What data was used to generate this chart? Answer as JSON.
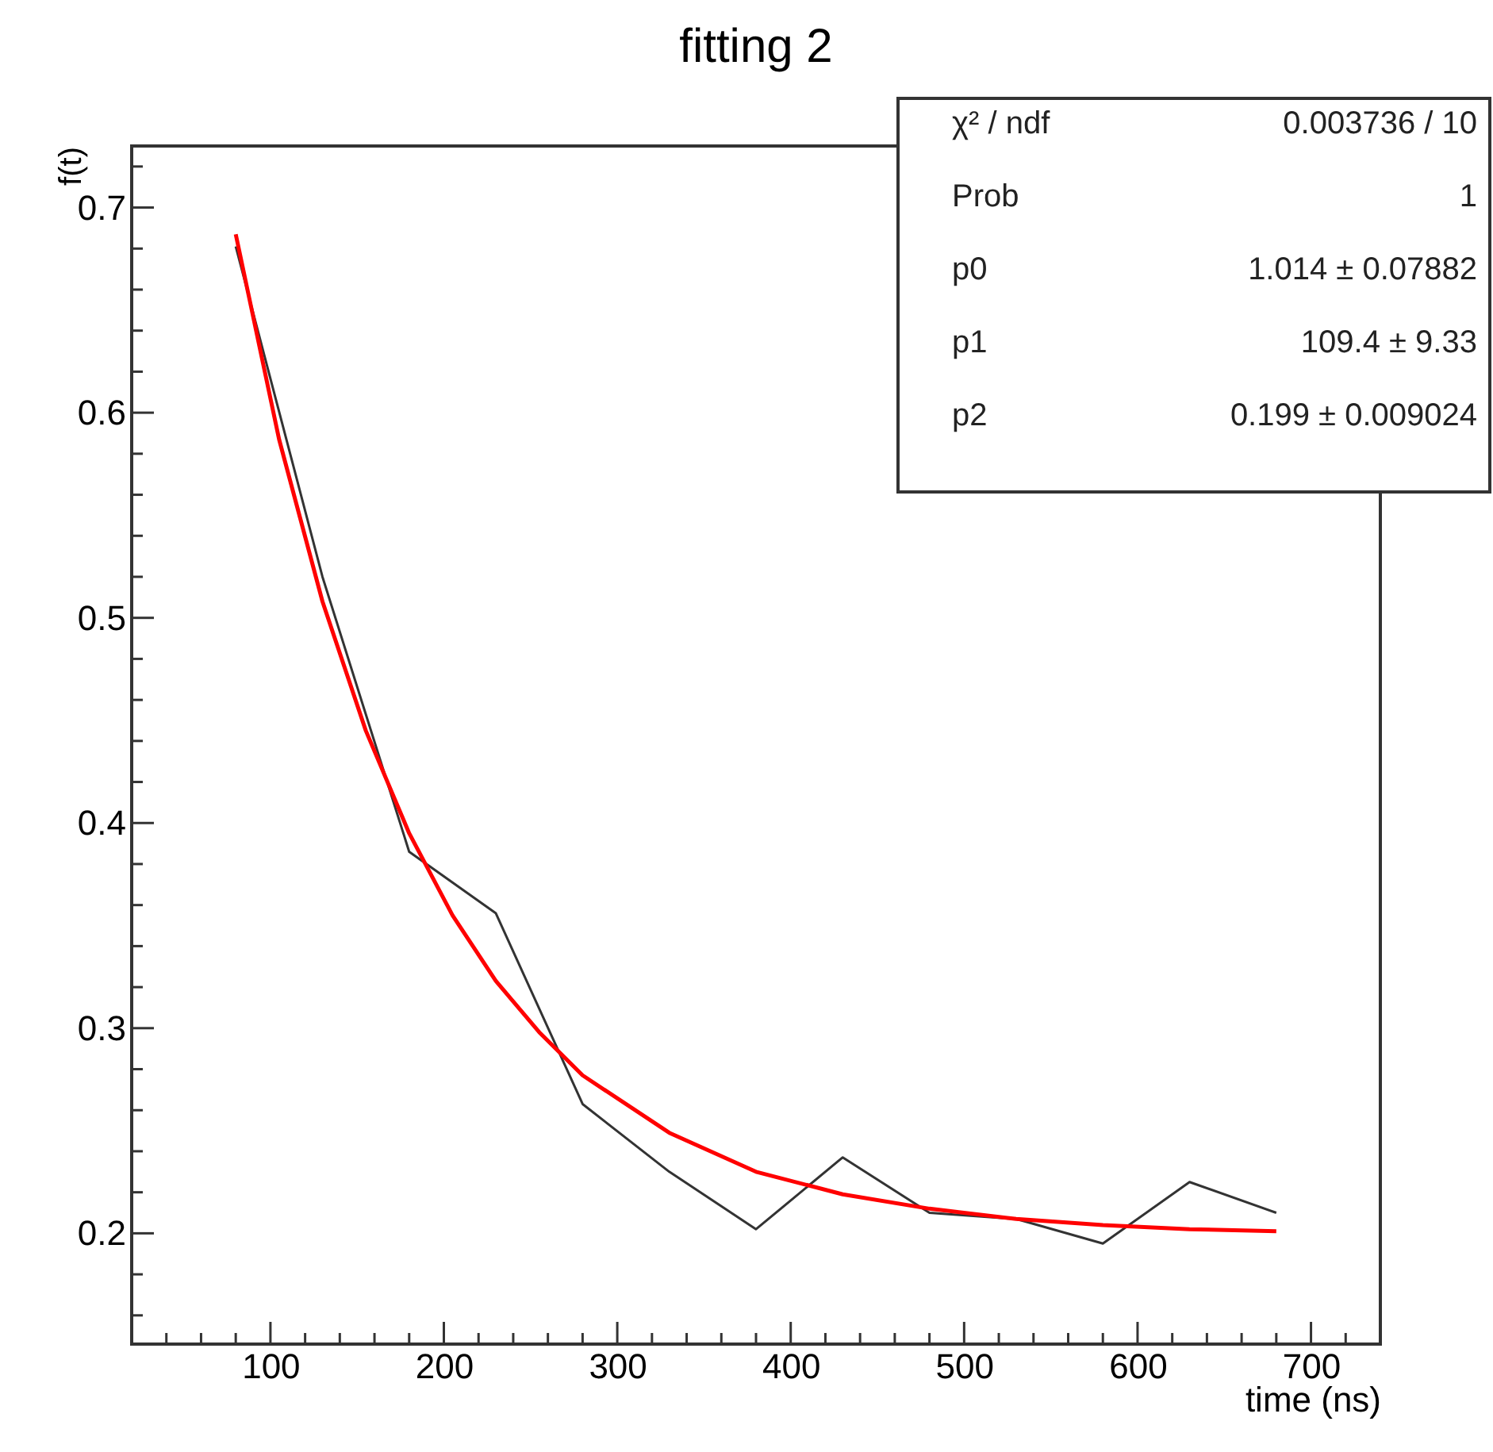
{
  "chart_data": {
    "type": "line",
    "title": "fitting 2",
    "xlabel": "time (ns)",
    "ylabel": "f(t)",
    "xlim": [
      20,
      740
    ],
    "xticks": [
      {
        "value": 20,
        "label": null
      },
      {
        "value": 40,
        "label": null
      },
      {
        "value": 60,
        "label": null
      },
      {
        "value": 80,
        "label": null
      },
      100,
      {
        "value": 120,
        "label": null
      },
      {
        "value": 140,
        "label": null
      },
      {
        "value": 160,
        "label": null
      },
      {
        "value": 180,
        "label": null
      },
      200,
      {
        "value": 220,
        "label": null
      },
      {
        "value": 240,
        "label": null
      },
      {
        "value": 260,
        "label": null
      },
      {
        "value": 280,
        "label": null
      },
      300,
      {
        "value": 320,
        "label": null
      },
      {
        "value": 340,
        "label": null
      },
      {
        "value": 360,
        "label": null
      },
      {
        "value": 380,
        "label": null
      },
      400,
      {
        "value": 420,
        "label": null
      },
      {
        "value": 440,
        "label": null
      },
      {
        "value": 460,
        "label": null
      },
      {
        "value": 480,
        "label": null
      },
      500,
      {
        "value": 520,
        "label": null
      },
      {
        "value": 540,
        "label": null
      },
      {
        "value": 560,
        "label": null
      },
      {
        "value": 580,
        "label": null
      },
      600,
      {
        "value": 620,
        "label": null
      },
      {
        "value": 640,
        "label": null
      },
      {
        "value": 660,
        "label": null
      },
      {
        "value": 680,
        "label": null
      },
      700,
      {
        "value": 720,
        "label": null
      }
    ],
    "ylim": [
      0.146,
      0.73
    ],
    "yticks": [
      {
        "value": 0.16,
        "label": null
      },
      {
        "value": 0.18,
        "label": null
      },
      0.2,
      {
        "value": 0.22,
        "label": null
      },
      {
        "value": 0.24,
        "label": null
      },
      {
        "value": 0.26,
        "label": null
      },
      {
        "value": 0.28,
        "label": null
      },
      0.3,
      {
        "value": 0.32,
        "label": null
      },
      {
        "value": 0.34,
        "label": null
      },
      {
        "value": 0.36,
        "label": null
      },
      {
        "value": 0.38,
        "label": null
      },
      0.4,
      {
        "value": 0.42,
        "label": null
      },
      {
        "value": 0.44,
        "label": null
      },
      {
        "value": 0.46,
        "label": null
      },
      {
        "value": 0.48,
        "label": null
      },
      0.5,
      {
        "value": 0.52,
        "label": null
      },
      {
        "value": 0.54,
        "label": null
      },
      {
        "value": 0.56,
        "label": null
      },
      {
        "value": 0.58,
        "label": null
      },
      0.6,
      {
        "value": 0.62,
        "label": null
      },
      {
        "value": 0.64,
        "label": null
      },
      {
        "value": 0.66,
        "label": null
      },
      {
        "value": 0.68,
        "label": null
      },
      0.7,
      {
        "value": 0.72,
        "label": null
      }
    ],
    "grid": false,
    "marker": "none",
    "line_style": "solid",
    "series": [
      {
        "color": "#333333",
        "x": [
          80,
          130,
          180,
          230,
          280,
          330,
          380,
          430,
          480,
          530,
          580,
          630,
          680
        ],
        "values": [
          0.681,
          0.52,
          0.386,
          0.356,
          0.263,
          0.23,
          0.202,
          0.237,
          0.21,
          0.207,
          0.195,
          0.225,
          0.21
        ]
      },
      {
        "color": "#ff0000",
        "x": [
          80,
          105,
          130,
          155,
          180,
          205,
          230,
          255,
          280,
          330,
          380,
          430,
          480,
          530,
          580,
          630,
          680
        ],
        "values": [
          0.687,
          0.587,
          0.508,
          0.445,
          0.395,
          0.355,
          0.323,
          0.298,
          0.277,
          0.249,
          0.23,
          0.219,
          0.212,
          0.207,
          0.204,
          0.202,
          0.201
        ]
      }
    ],
    "annotations": [
      "χ² / ndf",
      "0.003736 / 10",
      "Prob",
      "1",
      "p0",
      "1.014 ± 0.07882",
      "p1",
      "109.4 ±  9.33",
      "p2",
      "0.199 ± 0.009024"
    ]
  }
}
